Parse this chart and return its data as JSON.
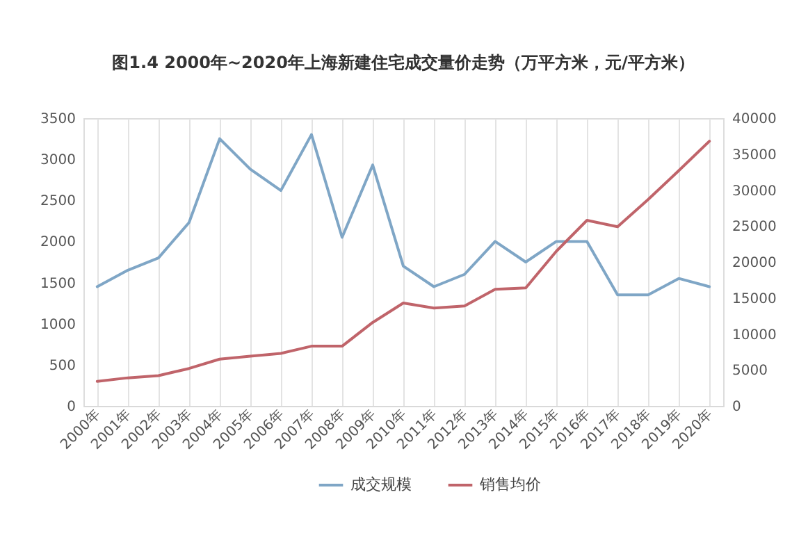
{
  "chart_data": {
    "type": "line",
    "title": "图1.4  2000年~2020年上海新建住宅成交量价走势（万平方米，元/平方米）",
    "categories": [
      "2000年",
      "2001年",
      "2002年",
      "2003年",
      "2004年",
      "2005年",
      "2006年",
      "2007年",
      "2008年",
      "2009年",
      "2010年",
      "2011年",
      "2012年",
      "2013年",
      "2014年",
      "2015年",
      "2016年",
      "2017年",
      "2018年",
      "2019年",
      "2020年"
    ],
    "series": [
      {
        "name": "成交规模",
        "color": "#7fa6c6",
        "values": [
          1450,
          1650,
          1800,
          2230,
          3250,
          2880,
          2620,
          3300,
          2050,
          2930,
          1700,
          1450,
          1600,
          2000,
          1750,
          2000,
          2000,
          1350,
          1350,
          1550,
          1450
        ]
      },
      {
        "name": "销售均价",
        "color": "#c0646a",
        "axis": "y2",
        "values": [
          3400,
          3900,
          4200,
          5200,
          6500,
          6900,
          7300,
          8300,
          8300,
          11600,
          14300,
          13600,
          13900,
          16200,
          16400,
          21500,
          25800,
          24900,
          28700,
          32700,
          36800
        ]
      }
    ],
    "ylim": [
      0,
      3500
    ],
    "yticks": [
      0,
      500,
      1000,
      1500,
      2000,
      2500,
      3000,
      3500
    ],
    "y2lim": [
      0,
      40000
    ],
    "y2ticks": [
      0,
      5000,
      10000,
      15000,
      20000,
      25000,
      30000,
      35000,
      40000
    ],
    "grid": "x",
    "legend": "bottom"
  }
}
